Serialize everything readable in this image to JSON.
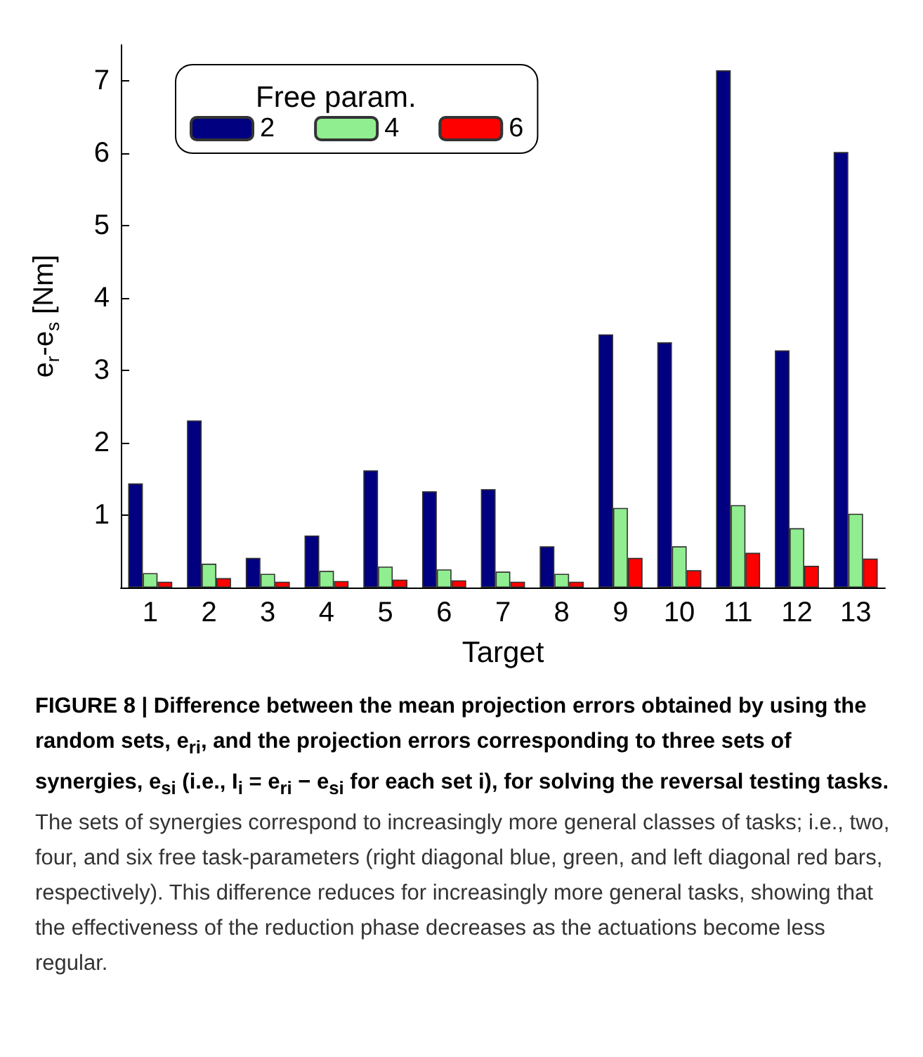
{
  "chart_data": {
    "type": "bar",
    "categories": [
      "1",
      "2",
      "3",
      "4",
      "5",
      "6",
      "7",
      "8",
      "9",
      "10",
      "11",
      "12",
      "13"
    ],
    "series": [
      {
        "name": "2",
        "color": "#000080",
        "values": [
          1.44,
          2.31,
          0.41,
          0.72,
          1.62,
          1.33,
          1.36,
          0.57,
          3.5,
          3.39,
          7.15,
          3.28,
          6.02
        ]
      },
      {
        "name": "4",
        "color": "#90ee90",
        "values": [
          0.2,
          0.33,
          0.19,
          0.23,
          0.29,
          0.25,
          0.22,
          0.19,
          1.1,
          0.57,
          1.14,
          0.82,
          1.02
        ]
      },
      {
        "name": "6",
        "color": "#ff0000",
        "values": [
          0.08,
          0.13,
          0.08,
          0.09,
          0.11,
          0.1,
          0.08,
          0.08,
          0.41,
          0.24,
          0.48,
          0.3,
          0.4
        ]
      }
    ],
    "xlabel": "Target",
    "ylabel": "e$_{r}$-e$_{s}$ [Nm]",
    "legend_title": "Free param.",
    "legend": "top left",
    "ylim": [
      0,
      7.5
    ],
    "yticks": [
      {
        "value": 0,
        "label": null
      },
      1,
      2,
      3,
      4,
      5,
      6,
      7
    ],
    "grid": false,
    "annotations": [
      "FIGURE 8 | Difference between the mean projection errors obtained by using the random sets, e$_{ri}$, and the projection errors corresponding to three sets of synergies, e$_{si}$ (i.e., I$_{i}$ = e$_{ri}$ − e$_{si}$ for each set i), for solving the reversal testing tasks.",
      "The sets of synergies correspond to increasingly more general classes of tasks; i.e., two, four, and six free task-parameters (right diagonal blue, green, and left diagonal red bars, respectively). This difference reduces for increasingly more general tasks, showing that the effectiveness of the reduction phase decreases as the actuations become less regular."
    ]
  }
}
